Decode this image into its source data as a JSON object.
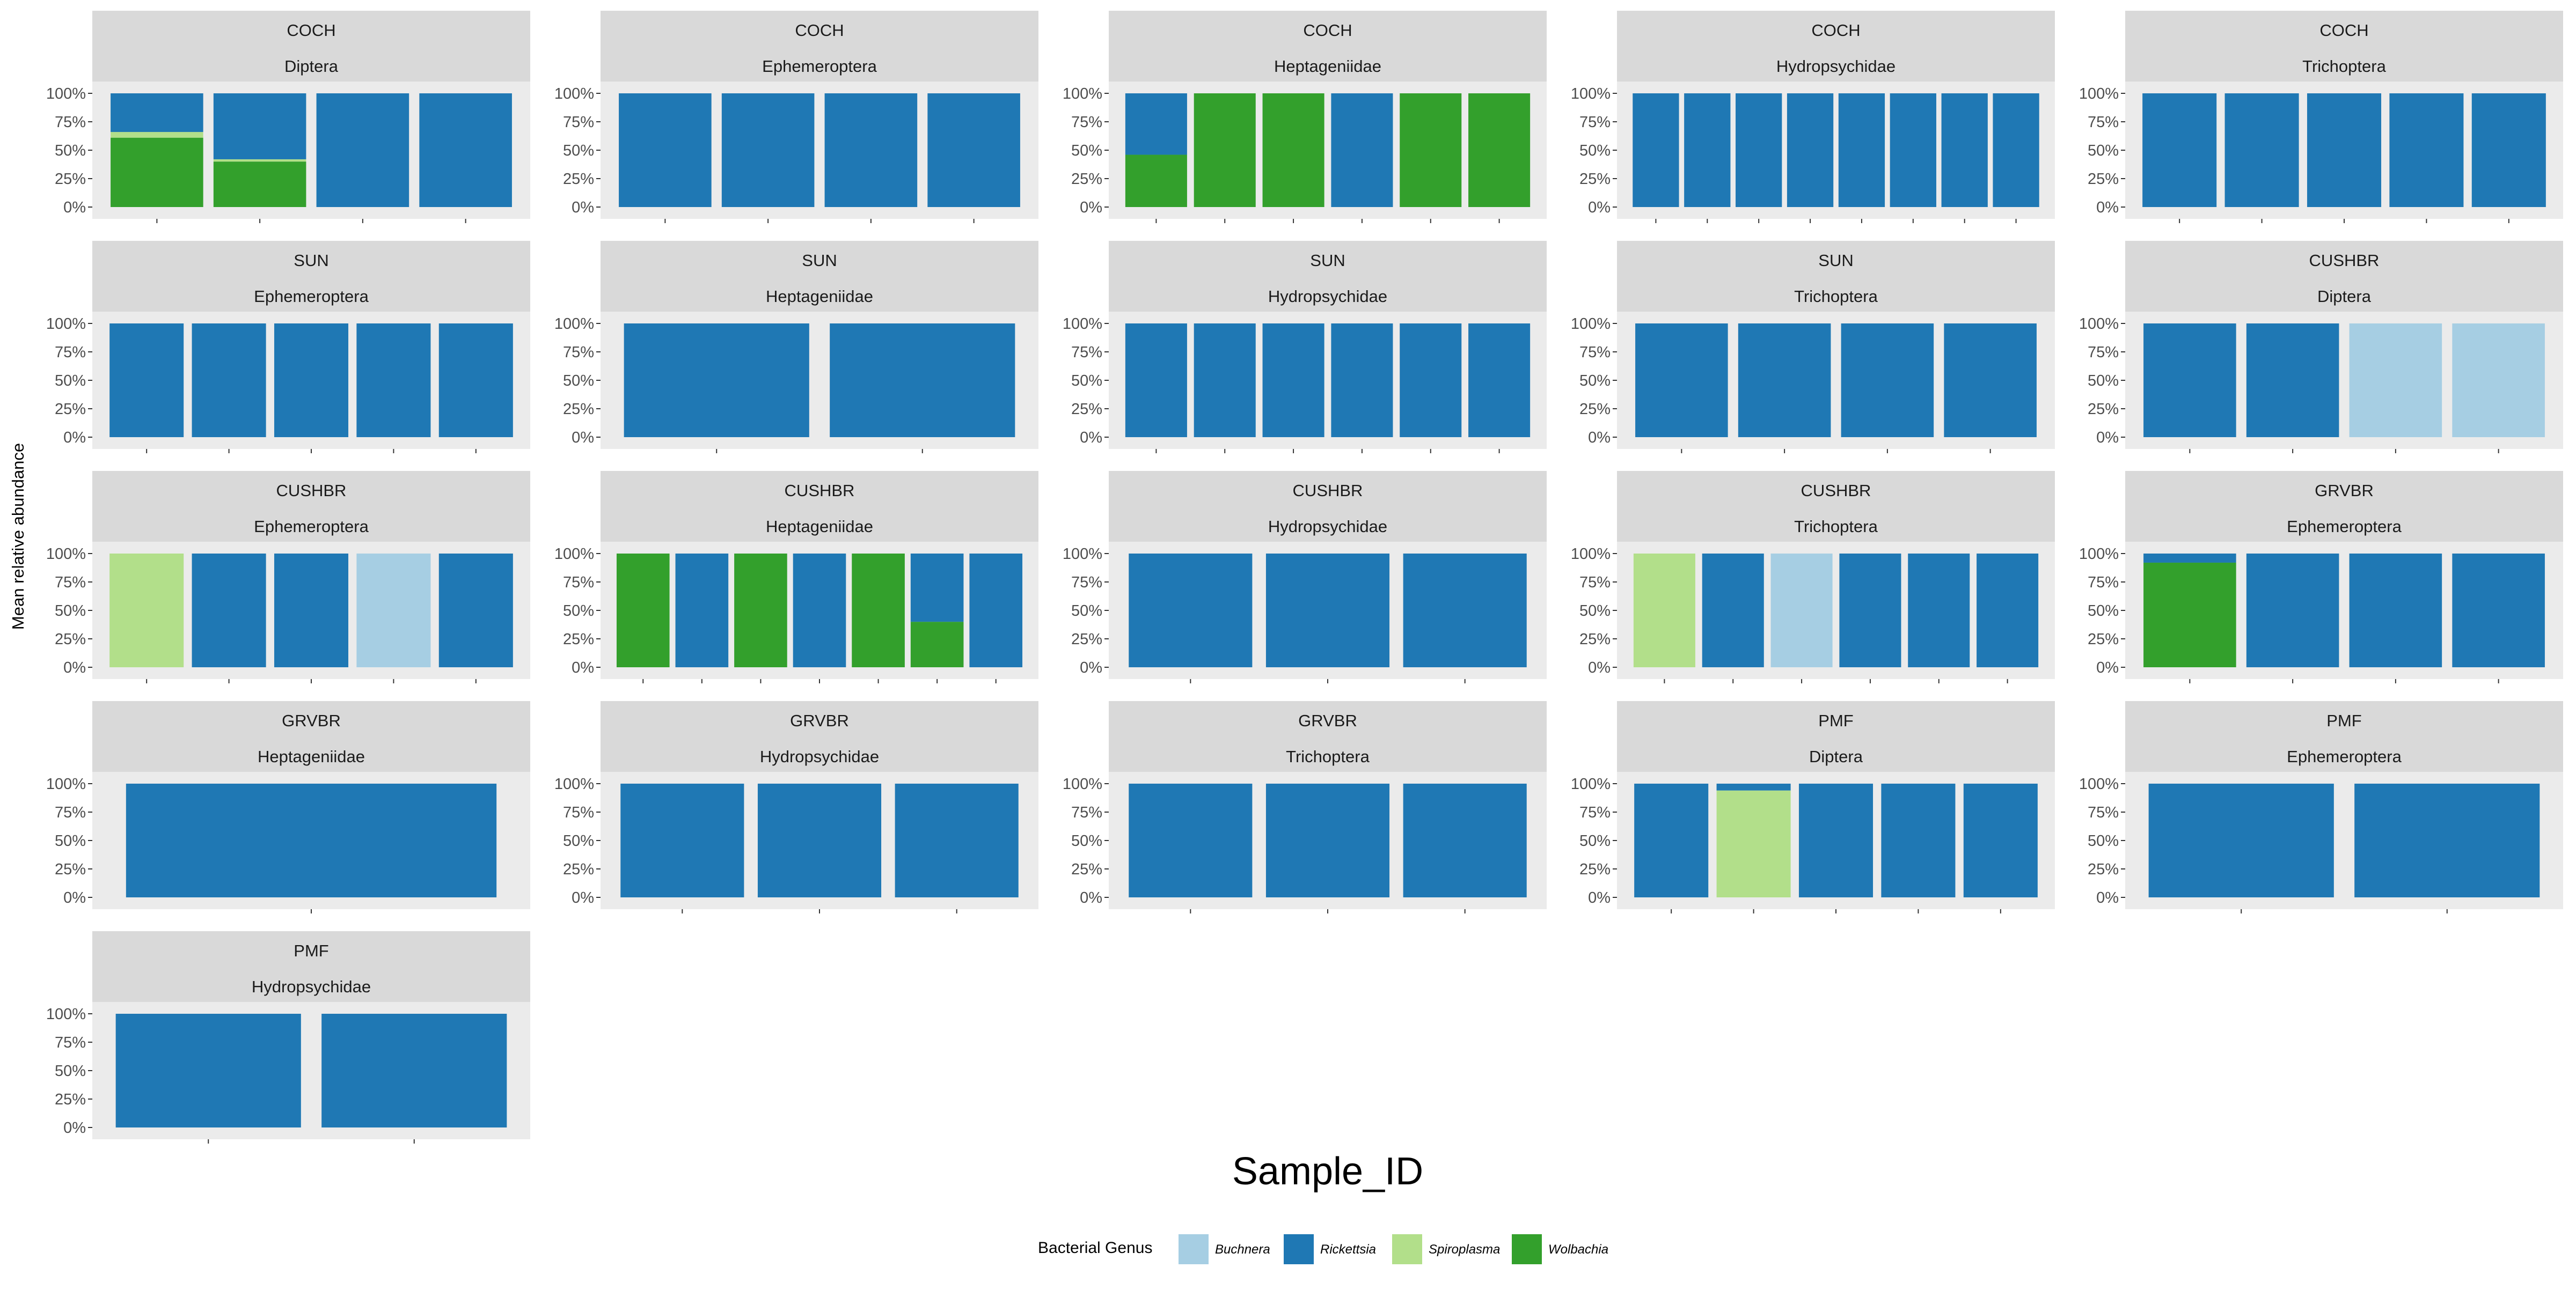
{
  "chart_data": {
    "type": "bar",
    "stacked": true,
    "facet_layout": "wrap, 5 columns, free x scales",
    "xlabel": "Sample_ID",
    "ylabel": "Mean relative abundance",
    "ylim": [
      0,
      1
    ],
    "y_ticks": [
      "0%",
      "25%",
      "50%",
      "75%",
      "100%"
    ],
    "grid": false,
    "legend": {
      "title": "Bacterial Genus",
      "position": "bottom",
      "entries": [
        {
          "name": "Buchnera",
          "color": "#a6cee3"
        },
        {
          "name": "Rickettsia",
          "color": "#1f78b4"
        },
        {
          "name": "Spiroplasma",
          "color": "#b2df8a"
        },
        {
          "name": "Wolbachia",
          "color": "#33a02c"
        }
      ]
    },
    "stack_order_bottom_to_top": [
      "Wolbachia",
      "Spiroplasma",
      "Rickettsia",
      "Buchnera"
    ],
    "panels": [
      {
        "site": "COCH",
        "taxon": "Diptera",
        "bars": [
          {
            "Wolbachia": 0.61,
            "Spiroplasma": 0.05,
            "Rickettsia": 0.34
          },
          {
            "Wolbachia": 0.4,
            "Spiroplasma": 0.02,
            "Rickettsia": 0.58
          },
          {
            "Rickettsia": 1
          },
          {
            "Rickettsia": 1
          }
        ]
      },
      {
        "site": "COCH",
        "taxon": "Ephemeroptera",
        "bars": [
          {
            "Rickettsia": 1
          },
          {
            "Rickettsia": 1
          },
          {
            "Rickettsia": 1
          },
          {
            "Rickettsia": 1
          }
        ]
      },
      {
        "site": "COCH",
        "taxon": "Heptageniidae",
        "bars": [
          {
            "Wolbachia": 0.46,
            "Rickettsia": 0.54
          },
          {
            "Wolbachia": 1
          },
          {
            "Wolbachia": 1
          },
          {
            "Rickettsia": 1
          },
          {
            "Wolbachia": 1
          },
          {
            "Wolbachia": 1
          }
        ]
      },
      {
        "site": "COCH",
        "taxon": "Hydropsychidae",
        "bars": [
          {
            "Rickettsia": 1
          },
          {
            "Rickettsia": 1
          },
          {
            "Rickettsia": 1
          },
          {
            "Rickettsia": 1
          },
          {
            "Rickettsia": 1
          },
          {
            "Rickettsia": 1
          },
          {
            "Rickettsia": 1
          },
          {
            "Rickettsia": 1
          }
        ]
      },
      {
        "site": "COCH",
        "taxon": "Trichoptera",
        "bars": [
          {
            "Rickettsia": 1
          },
          {
            "Rickettsia": 1
          },
          {
            "Rickettsia": 1
          },
          {
            "Rickettsia": 1
          },
          {
            "Rickettsia": 1
          }
        ]
      },
      {
        "site": "SUN",
        "taxon": "Ephemeroptera",
        "bars": [
          {
            "Rickettsia": 1
          },
          {
            "Rickettsia": 1
          },
          {
            "Rickettsia": 1
          },
          {
            "Rickettsia": 1
          },
          {
            "Rickettsia": 1
          }
        ]
      },
      {
        "site": "SUN",
        "taxon": "Heptageniidae",
        "bars": [
          {
            "Rickettsia": 1
          },
          {
            "Rickettsia": 1
          }
        ]
      },
      {
        "site": "SUN",
        "taxon": "Hydropsychidae",
        "bars": [
          {
            "Rickettsia": 1
          },
          {
            "Rickettsia": 1
          },
          {
            "Rickettsia": 1
          },
          {
            "Rickettsia": 1
          },
          {
            "Rickettsia": 1
          },
          {
            "Rickettsia": 1
          }
        ]
      },
      {
        "site": "SUN",
        "taxon": "Trichoptera",
        "bars": [
          {
            "Rickettsia": 1
          },
          {
            "Rickettsia": 1
          },
          {
            "Rickettsia": 1
          },
          {
            "Rickettsia": 1
          }
        ]
      },
      {
        "site": "CUSHBR",
        "taxon": "Diptera",
        "bars": [
          {
            "Rickettsia": 1
          },
          {
            "Rickettsia": 1
          },
          {
            "Buchnera": 1
          },
          {
            "Buchnera": 1
          }
        ]
      },
      {
        "site": "CUSHBR",
        "taxon": "Ephemeroptera",
        "bars": [
          {
            "Spiroplasma": 1
          },
          {
            "Rickettsia": 1
          },
          {
            "Rickettsia": 1
          },
          {
            "Buchnera": 1
          },
          {
            "Rickettsia": 1
          }
        ]
      },
      {
        "site": "CUSHBR",
        "taxon": "Heptageniidae",
        "bars": [
          {
            "Wolbachia": 1
          },
          {
            "Rickettsia": 1
          },
          {
            "Wolbachia": 1
          },
          {
            "Rickettsia": 1
          },
          {
            "Wolbachia": 1
          },
          {
            "Wolbachia": 0.4,
            "Rickettsia": 0.6
          },
          {
            "Rickettsia": 1
          }
        ]
      },
      {
        "site": "CUSHBR",
        "taxon": "Hydropsychidae",
        "bars": [
          {
            "Rickettsia": 1
          },
          {
            "Rickettsia": 1
          },
          {
            "Rickettsia": 1
          }
        ]
      },
      {
        "site": "CUSHBR",
        "taxon": "Trichoptera",
        "bars": [
          {
            "Spiroplasma": 1
          },
          {
            "Rickettsia": 1
          },
          {
            "Buchnera": 1
          },
          {
            "Rickettsia": 1
          },
          {
            "Rickettsia": 1
          },
          {
            "Rickettsia": 1
          }
        ]
      },
      {
        "site": "GRVBR",
        "taxon": "Ephemeroptera",
        "bars": [
          {
            "Wolbachia": 0.92,
            "Rickettsia": 0.08
          },
          {
            "Rickettsia": 1
          },
          {
            "Rickettsia": 1
          },
          {
            "Rickettsia": 1
          }
        ]
      },
      {
        "site": "GRVBR",
        "taxon": "Heptageniidae",
        "bars": [
          {
            "Rickettsia": 1
          }
        ]
      },
      {
        "site": "GRVBR",
        "taxon": "Hydropsychidae",
        "bars": [
          {
            "Rickettsia": 1
          },
          {
            "Rickettsia": 1
          },
          {
            "Rickettsia": 1
          }
        ]
      },
      {
        "site": "GRVBR",
        "taxon": "Trichoptera",
        "bars": [
          {
            "Rickettsia": 1
          },
          {
            "Rickettsia": 1
          },
          {
            "Rickettsia": 1
          }
        ]
      },
      {
        "site": "PMF",
        "taxon": "Diptera",
        "bars": [
          {
            "Rickettsia": 1
          },
          {
            "Spiroplasma": 0.94,
            "Rickettsia": 0.06
          },
          {
            "Rickettsia": 1
          },
          {
            "Rickettsia": 1
          },
          {
            "Rickettsia": 1
          }
        ]
      },
      {
        "site": "PMF",
        "taxon": "Ephemeroptera",
        "bars": [
          {
            "Rickettsia": 1
          },
          {
            "Rickettsia": 1
          }
        ]
      },
      {
        "site": "PMF",
        "taxon": "Hydropsychidae",
        "bars": [
          {
            "Rickettsia": 1
          },
          {
            "Rickettsia": 1
          }
        ]
      }
    ]
  }
}
